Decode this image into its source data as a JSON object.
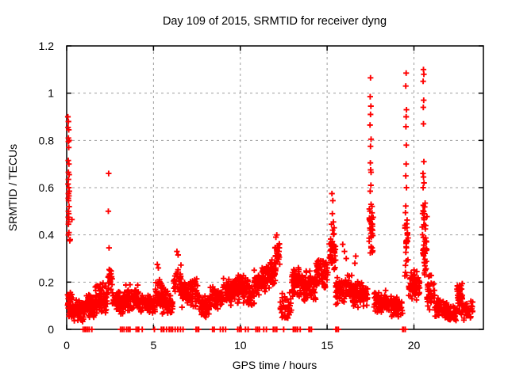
{
  "chart_data": {
    "type": "scatter",
    "title": "Day 109 of 2015, SRMTID for receiver dyng",
    "xlabel": "GPS time / hours",
    "ylabel": "SRMTID / TECUs",
    "xlim": [
      0,
      24
    ],
    "ylim": [
      0,
      1.2
    ],
    "xticks": [
      0,
      5,
      10,
      15,
      20
    ],
    "xtick_labels": [
      "0",
      "5",
      "10",
      "15",
      "20"
    ],
    "yticks": [
      0,
      0.2,
      0.4,
      0.6,
      0.8,
      1,
      1.2
    ],
    "ytick_labels": [
      "0",
      "0.2",
      "0.4",
      "0.6",
      "0.8",
      "1",
      "1.2"
    ],
    "grid": true,
    "legend": false,
    "marker": "plus",
    "marker_color": "#ff0000",
    "points": [
      [
        0.07,
        0.9
      ],
      [
        0.1,
        0.88
      ],
      [
        0.08,
        0.855
      ],
      [
        0.12,
        0.845
      ],
      [
        0.1,
        0.81
      ],
      [
        0.14,
        0.8
      ],
      [
        0.1,
        0.795
      ],
      [
        0.12,
        0.77
      ],
      [
        0.09,
        0.715
      ],
      [
        0.13,
        0.7
      ],
      [
        0.1,
        0.665
      ],
      [
        0.14,
        0.655
      ],
      [
        0.1,
        0.635
      ],
      [
        0.08,
        0.615
      ],
      [
        0.12,
        0.6
      ],
      [
        0.15,
        0.585
      ],
      [
        0.1,
        0.575
      ],
      [
        0.13,
        0.565
      ],
      [
        0.09,
        0.555
      ],
      [
        0.11,
        0.545
      ],
      [
        0.14,
        0.52
      ],
      [
        0.1,
        0.5
      ],
      [
        0.12,
        0.49
      ],
      [
        0.09,
        0.475
      ],
      [
        0.13,
        0.465
      ],
      [
        0.11,
        0.455
      ],
      [
        0.1,
        0.445
      ],
      [
        0.3,
        0.465
      ],
      [
        0.13,
        0.41
      ],
      [
        0.1,
        0.4
      ],
      [
        0.2,
        0.38
      ],
      [
        0.18,
        0.375
      ],
      [
        2.42,
        0.66
      ],
      [
        2.4,
        0.5
      ],
      [
        2.44,
        0.345
      ],
      [
        5.22,
        0.275
      ],
      [
        5.28,
        0.26
      ],
      [
        6.35,
        0.33
      ],
      [
        6.42,
        0.315
      ],
      [
        12.1,
        0.4
      ],
      [
        12.05,
        0.39
      ],
      [
        15.28,
        0.575
      ],
      [
        15.33,
        0.545
      ],
      [
        15.3,
        0.49
      ],
      [
        15.36,
        0.455
      ],
      [
        15.25,
        0.445
      ],
      [
        15.4,
        0.43
      ],
      [
        15.32,
        0.42
      ],
      [
        15.38,
        0.405
      ],
      [
        15.9,
        0.36
      ],
      [
        16.0,
        0.33
      ],
      [
        16.1,
        0.3
      ],
      [
        16.65,
        0.31
      ],
      [
        16.6,
        0.28
      ],
      [
        17.5,
        1.065
      ],
      [
        17.48,
        0.985
      ],
      [
        17.52,
        0.945
      ],
      [
        17.5,
        0.91
      ],
      [
        17.47,
        0.865
      ],
      [
        17.53,
        0.805
      ],
      [
        17.5,
        0.775
      ],
      [
        17.49,
        0.705
      ],
      [
        17.51,
        0.675
      ],
      [
        17.53,
        0.665
      ],
      [
        17.52,
        0.61
      ],
      [
        17.48,
        0.585
      ],
      [
        19.55,
        1.085
      ],
      [
        19.53,
        1.03
      ],
      [
        19.57,
        0.93
      ],
      [
        19.55,
        0.9
      ],
      [
        19.54,
        0.858
      ],
      [
        19.56,
        0.78
      ],
      [
        19.55,
        0.7
      ],
      [
        19.53,
        0.65
      ],
      [
        19.57,
        0.6
      ],
      [
        20.55,
        1.1
      ],
      [
        20.57,
        1.08
      ],
      [
        20.53,
        1.05
      ],
      [
        20.56,
        0.97
      ],
      [
        20.54,
        0.94
      ],
      [
        20.55,
        0.87
      ],
      [
        20.57,
        0.71
      ],
      [
        20.52,
        0.66
      ],
      [
        20.55,
        0.645
      ],
      [
        20.58,
        0.62
      ],
      [
        20.53,
        0.6
      ]
    ],
    "zero_points_x": [
      0.95,
      1.05,
      1.1,
      1.2,
      1.3,
      1.45,
      3.1,
      3.2,
      3.3,
      3.45,
      3.55,
      3.65,
      4.0,
      4.1,
      4.15,
      4.35,
      5.05,
      5.45,
      5.55,
      5.6,
      5.75,
      5.9,
      6.0,
      6.1,
      6.25,
      6.4,
      6.55,
      6.7,
      7.45,
      7.55,
      7.6,
      8.4,
      8.5,
      8.85,
      9.0,
      9.15,
      9.85,
      9.95,
      10.05,
      10.3,
      10.45,
      10.9,
      11.0,
      11.1,
      11.35,
      11.5,
      11.9,
      12.0,
      12.1,
      12.5,
      13.05,
      13.1,
      13.2,
      13.3,
      13.45,
      13.95,
      14.0,
      14.1,
      15.5,
      15.55,
      15.65,
      19.35,
      19.4,
      19.5
    ],
    "density_bands_note": "dense scatter regions approximated as [x_start, x_end, y_min, y_max, point_count]",
    "density_bands": [
      [
        0.05,
        0.32,
        0.04,
        0.16,
        40
      ],
      [
        0.32,
        1.0,
        0.03,
        0.13,
        80
      ],
      [
        1.0,
        1.65,
        0.04,
        0.15,
        70
      ],
      [
        1.65,
        2.35,
        0.06,
        0.2,
        75
      ],
      [
        2.38,
        2.62,
        0.14,
        0.28,
        24
      ],
      [
        2.62,
        3.4,
        0.06,
        0.17,
        80
      ],
      [
        3.4,
        4.2,
        0.07,
        0.2,
        80
      ],
      [
        4.2,
        5.1,
        0.06,
        0.16,
        75
      ],
      [
        5.1,
        5.5,
        0.08,
        0.24,
        40
      ],
      [
        5.5,
        6.15,
        0.06,
        0.17,
        60
      ],
      [
        6.15,
        6.6,
        0.12,
        0.3,
        30
      ],
      [
        6.6,
        7.6,
        0.09,
        0.22,
        85
      ],
      [
        7.6,
        8.25,
        0.05,
        0.16,
        60
      ],
      [
        8.25,
        9.0,
        0.08,
        0.19,
        70
      ],
      [
        9.0,
        9.8,
        0.1,
        0.23,
        80
      ],
      [
        9.8,
        10.45,
        0.11,
        0.24,
        70
      ],
      [
        10.45,
        10.8,
        0.09,
        0.19,
        35
      ],
      [
        10.8,
        11.5,
        0.14,
        0.27,
        75
      ],
      [
        11.5,
        12.05,
        0.16,
        0.31,
        60
      ],
      [
        12.0,
        12.3,
        0.26,
        0.385,
        26
      ],
      [
        12.3,
        12.95,
        0.03,
        0.16,
        40
      ],
      [
        12.95,
        13.6,
        0.13,
        0.27,
        65
      ],
      [
        13.6,
        14.35,
        0.11,
        0.26,
        70
      ],
      [
        14.35,
        15.05,
        0.16,
        0.32,
        65
      ],
      [
        15.1,
        15.5,
        0.24,
        0.42,
        40
      ],
      [
        15.5,
        16.45,
        0.1,
        0.24,
        80
      ],
      [
        16.45,
        17.35,
        0.09,
        0.21,
        80
      ],
      [
        17.42,
        17.66,
        0.28,
        0.56,
        34
      ],
      [
        17.7,
        18.45,
        0.06,
        0.17,
        70
      ],
      [
        18.45,
        19.35,
        0.04,
        0.145,
        75
      ],
      [
        19.48,
        19.68,
        0.15,
        0.55,
        30
      ],
      [
        19.7,
        20.38,
        0.12,
        0.26,
        65
      ],
      [
        20.46,
        20.75,
        0.2,
        0.58,
        44
      ],
      [
        20.75,
        21.2,
        0.07,
        0.24,
        40
      ],
      [
        21.2,
        21.9,
        0.04,
        0.14,
        65
      ],
      [
        21.9,
        22.45,
        0.03,
        0.1,
        55
      ],
      [
        22.45,
        22.8,
        0.06,
        0.21,
        40
      ],
      [
        22.8,
        23.38,
        0.03,
        0.13,
        40
      ]
    ]
  }
}
